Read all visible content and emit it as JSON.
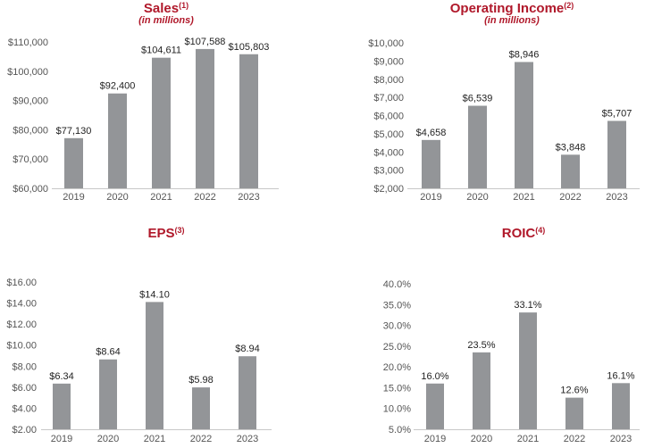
{
  "chart_data": [
    {
      "type": "bar",
      "title": "Sales",
      "title_note": "(1)",
      "subtitle": "(in millions)",
      "categories": [
        "2019",
        "2020",
        "2021",
        "2022",
        "2023"
      ],
      "values": [
        77130,
        92400,
        104611,
        107588,
        105803
      ],
      "data_labels": [
        "$77,130",
        "$92,400",
        "$104,611",
        "$107,588",
        "$105,803"
      ],
      "ylim": [
        60000,
        110000
      ],
      "yticks": [
        60000,
        70000,
        80000,
        90000,
        100000,
        110000
      ],
      "ytick_labels": [
        "$60,000",
        "$70,000",
        "$80,000",
        "$90,000",
        "$100,000",
        "$110,000"
      ]
    },
    {
      "type": "bar",
      "title": "Operating Income",
      "title_note": "(2)",
      "subtitle": "(in millions)",
      "categories": [
        "2019",
        "2020",
        "2021",
        "2022",
        "2023"
      ],
      "values": [
        4658,
        6539,
        8946,
        3848,
        5707
      ],
      "data_labels": [
        "$4,658",
        "$6,539",
        "$8,946",
        "$3,848",
        "$5,707"
      ],
      "ylim": [
        2000,
        10000
      ],
      "yticks": [
        2000,
        3000,
        4000,
        5000,
        6000,
        7000,
        8000,
        9000,
        10000
      ],
      "ytick_labels": [
        "$2,000",
        "$3,000",
        "$4,000",
        "$5,000",
        "$6,000",
        "$7,000",
        "$8,000",
        "$9,000",
        "$10,000"
      ]
    },
    {
      "type": "bar",
      "title": "EPS",
      "title_note": "(3)",
      "subtitle": "",
      "categories": [
        "2019",
        "2020",
        "2021",
        "2022",
        "2023"
      ],
      "values": [
        6.34,
        8.64,
        14.1,
        5.98,
        8.94
      ],
      "data_labels": [
        "$6.34",
        "$8.64",
        "$14.10",
        "$5.98",
        "$8.94"
      ],
      "ylim": [
        2,
        16
      ],
      "yticks": [
        2,
        4,
        6,
        8,
        10,
        12,
        14,
        16
      ],
      "ytick_labels": [
        "$2.00",
        "$4.00",
        "$6.00",
        "$8.00",
        "$10.00",
        "$12.00",
        "$14.00",
        "$16.00"
      ]
    },
    {
      "type": "bar",
      "title": "ROIC",
      "title_note": "(4)",
      "subtitle": "",
      "categories": [
        "2019",
        "2020",
        "2021",
        "2022",
        "2023"
      ],
      "values": [
        16.0,
        23.5,
        33.1,
        12.6,
        16.1
      ],
      "data_labels": [
        "16.0%",
        "23.5%",
        "33.1%",
        "12.6%",
        "16.1%"
      ],
      "ylim": [
        5,
        40
      ],
      "yticks": [
        5,
        10,
        15,
        20,
        25,
        30,
        35,
        40
      ],
      "ytick_labels": [
        "5.0%",
        "10.0%",
        "15.0%",
        "20.0%",
        "25.0%",
        "30.0%",
        "35.0%",
        "40.0%"
      ]
    }
  ]
}
